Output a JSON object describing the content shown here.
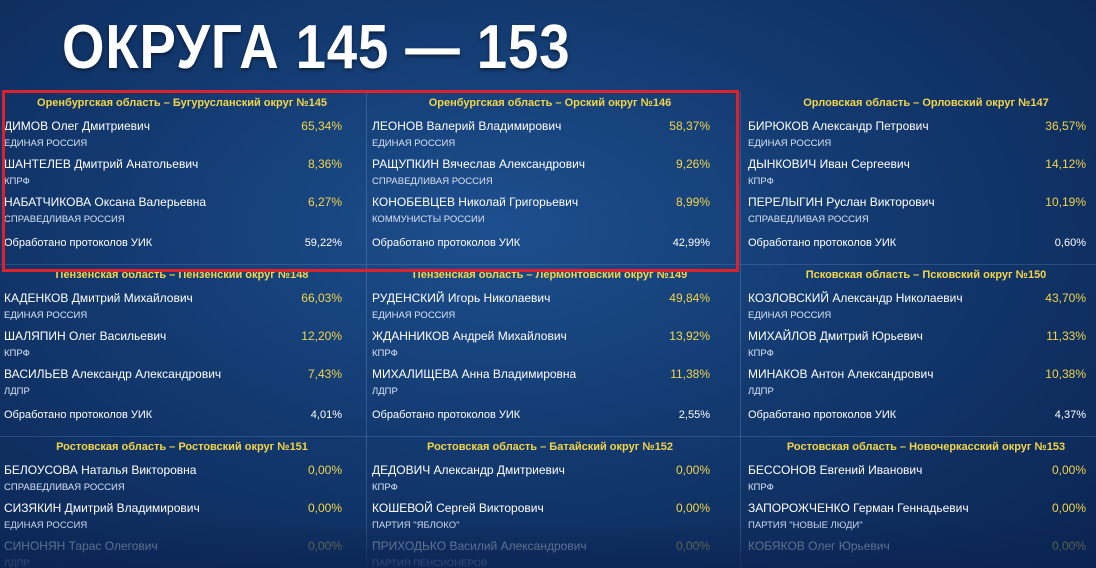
{
  "title": "ОКРУГА 145 — 153",
  "districts": [
    {
      "header": "Оренбургская область – Бугурусланский округ №145",
      "candidates": [
        {
          "name": "ДИМОВ Олег Дмитриевич",
          "percent": "65,34%",
          "party": "ЕДИНАЯ РОССИЯ"
        },
        {
          "name": "ШАНТЕЛЕВ Дмитрий Анатольевич",
          "percent": "8,36%",
          "party": "КПРФ"
        },
        {
          "name": "НАБАТЧИКОВА Оксана Валерьевна",
          "percent": "6,27%",
          "party": "СПРАВЕДЛИВАЯ РОССИЯ"
        }
      ],
      "processed": {
        "label": "Обработано протоколов УИК",
        "percent": "59,22%"
      }
    },
    {
      "header": "Оренбургская область – Орский округ №146",
      "candidates": [
        {
          "name": "ЛЕОНОВ Валерий Владимирович",
          "percent": "58,37%",
          "party": "ЕДИНАЯ РОССИЯ"
        },
        {
          "name": "РАЩУПКИН Вячеслав Александрович",
          "percent": "9,26%",
          "party": "СПРАВЕДЛИВАЯ РОССИЯ"
        },
        {
          "name": "КОНОБЕВЦЕВ Николай Григорьевич",
          "percent": "8,99%",
          "party": "КОММУНИСТЫ РОССИИ"
        }
      ],
      "processed": {
        "label": "Обработано протоколов УИК",
        "percent": "42,99%"
      }
    },
    {
      "header": "Орловская область – Орловский округ №147",
      "candidates": [
        {
          "name": "БИРЮКОВ Александр Петрович",
          "percent": "36,57%",
          "party": "ЕДИНАЯ РОССИЯ"
        },
        {
          "name": "ДЫНКОВИЧ Иван Сергеевич",
          "percent": "14,12%",
          "party": "КПРФ"
        },
        {
          "name": "ПЕРЕЛЫГИН Руслан Викторович",
          "percent": "10,19%",
          "party": "СПРАВЕДЛИВАЯ РОССИЯ"
        }
      ],
      "processed": {
        "label": "Обработано протоколов УИК",
        "percent": "0,60%"
      }
    },
    {
      "header": "Пензенская область – Пензенский округ №148",
      "candidates": [
        {
          "name": "КАДЕНКОВ Дмитрий Михайлович",
          "percent": "66,03%",
          "party": "ЕДИНАЯ РОССИЯ"
        },
        {
          "name": "ШАЛЯПИН Олег Васильевич",
          "percent": "12,20%",
          "party": "КПРФ"
        },
        {
          "name": "ВАСИЛЬЕВ Александр Александрович",
          "percent": "7,43%",
          "party": "ЛДПР"
        }
      ],
      "processed": {
        "label": "Обработано протоколов УИК",
        "percent": "4,01%"
      }
    },
    {
      "header": "Пензенская область – Лермонтовский округ №149",
      "candidates": [
        {
          "name": "РУДЕНСКИЙ Игорь Николаевич",
          "percent": "49,84%",
          "party": "ЕДИНАЯ РОССИЯ"
        },
        {
          "name": "ЖДАННИКОВ Андрей Михайлович",
          "percent": "13,92%",
          "party": "КПРФ"
        },
        {
          "name": "МИХАЛИЩЕВА Анна Владимировна",
          "percent": "11,38%",
          "party": "ЛДПР"
        }
      ],
      "processed": {
        "label": "Обработано протоколов УИК",
        "percent": "2,55%"
      }
    },
    {
      "header": "Псковская область – Псковский округ №150",
      "candidates": [
        {
          "name": "КОЗЛОВСКИЙ Александр Николаевич",
          "percent": "43,70%",
          "party": "ЕДИНАЯ РОССИЯ"
        },
        {
          "name": "МИХАЙЛОВ Дмитрий Юрьевич",
          "percent": "11,33%",
          "party": "КПРФ"
        },
        {
          "name": "МИНАКОВ Антон Александрович",
          "percent": "10,38%",
          "party": "ЛДПР"
        }
      ],
      "processed": {
        "label": "Обработано протоколов УИК",
        "percent": "4,37%"
      }
    },
    {
      "header": "Ростовская область – Ростовский округ №151",
      "candidates": [
        {
          "name": "БЕЛОУСОВА Наталья Викторовна",
          "percent": "0,00%",
          "party": "СПРАВЕДЛИВАЯ РОССИЯ"
        },
        {
          "name": "СИЗЯКИН Дмитрий Владимирович",
          "percent": "0,00%",
          "party": "ЕДИНАЯ РОССИЯ"
        },
        {
          "name": "СИНОНЯН Тарас Олегович",
          "percent": "0,00%",
          "party": "ЛДПР"
        }
      ]
    },
    {
      "header": "Ростовская область – Батайский округ №152",
      "candidates": [
        {
          "name": "ДЕДОВИЧ Александр Дмитриевич",
          "percent": "0,00%",
          "party": "КПРФ"
        },
        {
          "name": "КОШЕВОЙ Сергей Викторович",
          "percent": "0,00%",
          "party": "ПАРТИЯ \"ЯБЛОКО\""
        },
        {
          "name": "ПРИХОДЬКО Василий Александрович",
          "percent": "0,00%",
          "party": "ПАРТИЯ ПЕНСИОНЕРОВ"
        }
      ]
    },
    {
      "header": "Ростовская область – Новочеркасский округ №153",
      "candidates": [
        {
          "name": "БЕССОНОВ Евгений Иванович",
          "percent": "0,00%",
          "party": "КПРФ"
        },
        {
          "name": "ЗАПОРОЖЧЕНКО Герман Геннадьевич",
          "percent": "0,00%",
          "party": "ПАРТИЯ \"НОВЫЕ ЛЮДИ\""
        },
        {
          "name": "КОБЯКОВ Олег Юрьевич",
          "percent": "0,00%"
        }
      ]
    }
  ]
}
